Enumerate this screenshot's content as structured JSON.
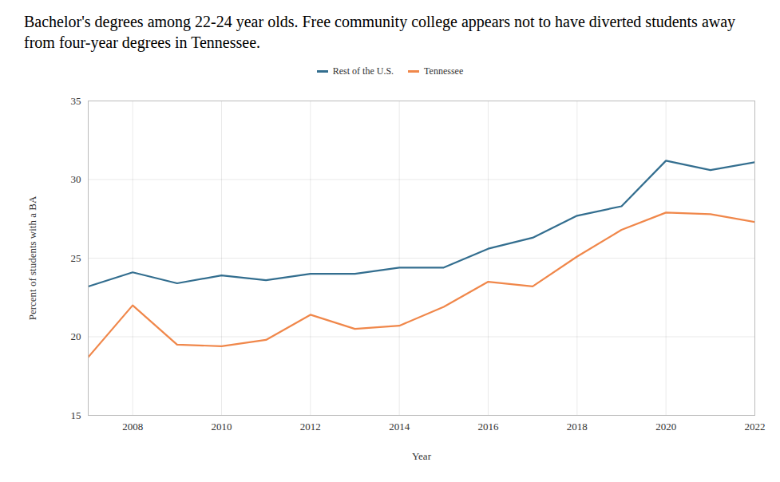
{
  "chart_data": {
    "type": "line",
    "title": "Bachelor's degrees among 22-24 year olds. Free community college appears not to have diverted students away from four-year degrees in Tennessee.",
    "x_label": "Year",
    "y_label": "Percent of students with a BA",
    "x": [
      2007,
      2008,
      2009,
      2010,
      2011,
      2012,
      2013,
      2014,
      2015,
      2016,
      2017,
      2018,
      2019,
      2020,
      2021,
      2022
    ],
    "series": [
      {
        "name": "Rest of the U.S.",
        "color": "#336e8f",
        "values": [
          23.2,
          24.1,
          23.4,
          23.9,
          23.6,
          24.0,
          24.0,
          24.4,
          24.4,
          25.6,
          26.3,
          27.7,
          28.3,
          31.2,
          30.6,
          31.1
        ]
      },
      {
        "name": "Tennessee",
        "color": "#f0874a",
        "values": [
          18.7,
          22.0,
          19.5,
          19.4,
          19.8,
          21.4,
          20.5,
          20.7,
          21.9,
          23.5,
          23.2,
          25.1,
          26.8,
          27.9,
          27.8,
          27.3
        ]
      }
    ],
    "xlim": [
      2007,
      2022
    ],
    "xticks": [
      2008,
      2010,
      2012,
      2014,
      2016,
      2018,
      2020,
      2022
    ],
    "ylim": [
      15,
      35
    ],
    "yticks": [
      15,
      20,
      25,
      30,
      35
    ],
    "grid": true,
    "legend": "top"
  }
}
